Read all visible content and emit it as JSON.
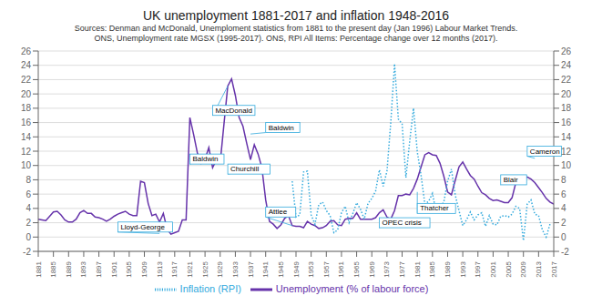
{
  "chart_data": {
    "type": "line",
    "title": "UK unemployment 1881-2017 and inflation 1948-2016",
    "subtitle": [
      "Sources: Denman and McDonald, Unemploment statistics from 1881 to the present day (Jan 1996) Labour Market Trends.",
      "ONS, Unemployment rate MGSX (1995-2017). ONS, RPI All Items: Percentage change over 12 months (2017)."
    ],
    "xlim": [
      1881,
      2017
    ],
    "xticks": [
      1881,
      1885,
      1889,
      1893,
      1897,
      1901,
      1905,
      1909,
      1913,
      1917,
      1921,
      1925,
      1929,
      1933,
      1937,
      1941,
      1945,
      1949,
      1953,
      1957,
      1961,
      1965,
      1969,
      1973,
      1977,
      1981,
      1985,
      1989,
      1993,
      1997,
      2001,
      2005,
      2009,
      2013,
      2017
    ],
    "ylim": [
      -2,
      26
    ],
    "yticks": [
      -2,
      0,
      2,
      4,
      6,
      8,
      10,
      12,
      14,
      16,
      18,
      20,
      22,
      24,
      26
    ],
    "y2lim": [
      -2,
      26
    ],
    "y2ticks": [
      -2,
      0,
      2,
      4,
      6,
      8,
      10,
      12,
      14,
      16,
      18,
      20,
      22,
      24,
      26
    ],
    "grid": true,
    "legend": "bottom",
    "series": [
      {
        "name": "Unemployment (% of labour force)",
        "color": "#6633aa",
        "line_style": "solid",
        "x": [
          1881,
          1882,
          1883,
          1884,
          1885,
          1886,
          1887,
          1888,
          1889,
          1890,
          1891,
          1892,
          1893,
          1894,
          1895,
          1896,
          1897,
          1898,
          1899,
          1900,
          1901,
          1902,
          1903,
          1904,
          1905,
          1906,
          1907,
          1908,
          1909,
          1910,
          1911,
          1912,
          1913,
          1914,
          1915,
          1916,
          1917,
          1918,
          1919,
          1920,
          1921,
          1922,
          1923,
          1924,
          1925,
          1926,
          1927,
          1928,
          1929,
          1930,
          1931,
          1932,
          1933,
          1934,
          1935,
          1936,
          1937,
          1938,
          1939,
          1940,
          1941,
          1942,
          1943,
          1944,
          1945,
          1946,
          1947,
          1948,
          1949,
          1950,
          1951,
          1952,
          1953,
          1954,
          1955,
          1956,
          1957,
          1958,
          1959,
          1960,
          1961,
          1962,
          1963,
          1964,
          1965,
          1966,
          1967,
          1968,
          1969,
          1970,
          1971,
          1972,
          1973,
          1974,
          1975,
          1976,
          1977,
          1978,
          1979,
          1980,
          1981,
          1982,
          1983,
          1984,
          1985,
          1986,
          1987,
          1988,
          1989,
          1990,
          1991,
          1992,
          1993,
          1994,
          1995,
          1996,
          1997,
          1998,
          1999,
          2000,
          2001,
          2002,
          2003,
          2004,
          2005,
          2006,
          2007,
          2008,
          2009,
          2010,
          2011,
          2012,
          2013,
          2014,
          2015,
          2016,
          2017
        ],
        "values": [
          2.5,
          2.4,
          2.3,
          2.9,
          3.5,
          3.6,
          3.1,
          2.4,
          2.1,
          2.1,
          2.5,
          3.4,
          3.7,
          3.3,
          3.3,
          2.8,
          2.7,
          2.5,
          2.2,
          2.5,
          2.9,
          3.2,
          3.4,
          3.6,
          3.2,
          3.0,
          3.0,
          7.8,
          7.6,
          4.7,
          3.0,
          3.2,
          2.1,
          3.3,
          1.1,
          0.4,
          0.6,
          0.8,
          2.4,
          2.4,
          16.7,
          14.3,
          11.7,
          10.3,
          10.9,
          12.5,
          9.7,
          10.8,
          10.4,
          15.8,
          21.1,
          22.1,
          19.8,
          16.7,
          15.5,
          13.1,
          10.8,
          12.9,
          11.6,
          9.7,
          5.2,
          2.2,
          1.8,
          1.2,
          1.7,
          2.6,
          3.0,
          1.6,
          1.5,
          1.5,
          1.3,
          2.2,
          1.8,
          1.6,
          1.2,
          1.3,
          1.6,
          2.2,
          2.3,
          1.7,
          1.6,
          2.5,
          2.6,
          2.6,
          3.4,
          2.5,
          2.5,
          2.5,
          2.5,
          2.7,
          3.4,
          3.8,
          2.8,
          2.5,
          3.7,
          5.8,
          5.8,
          6.0,
          5.9,
          6.8,
          8.1,
          9.8,
          11.5,
          11.8,
          11.5,
          11.4,
          10.3,
          8.5,
          6.3,
          5.9,
          7.9,
          9.8,
          10.5,
          9.5,
          8.6,
          8.1,
          7.1,
          6.2,
          5.9,
          5.4,
          5.1,
          5.2,
          5.0,
          4.8,
          4.8,
          5.5,
          7.6,
          7.9,
          8.3,
          8.4,
          8.1,
          7.6,
          6.9,
          6.2,
          5.4,
          4.9,
          4.6
        ]
      },
      {
        "name": "Inflation  (RPI)",
        "color": "#33aadd",
        "line_style": "dotted",
        "axis": "y2",
        "x": [
          1948,
          1949,
          1950,
          1951,
          1952,
          1953,
          1954,
          1955,
          1956,
          1957,
          1958,
          1959,
          1960,
          1961,
          1962,
          1963,
          1964,
          1965,
          1966,
          1967,
          1968,
          1969,
          1970,
          1971,
          1972,
          1973,
          1974,
          1975,
          1976,
          1977,
          1978,
          1979,
          1980,
          1981,
          1982,
          1983,
          1984,
          1985,
          1986,
          1987,
          1988,
          1989,
          1990,
          1991,
          1992,
          1993,
          1994,
          1995,
          1996,
          1997,
          1998,
          1999,
          2000,
          2001,
          2002,
          2003,
          2004,
          2005,
          2006,
          2007,
          2008,
          2009,
          2010,
          2011,
          2012,
          2013,
          2014,
          2015,
          2016
        ],
        "values": [
          7.8,
          2.8,
          3.1,
          9.1,
          9.2,
          3.1,
          1.8,
          4.5,
          4.9,
          3.7,
          3.0,
          0.6,
          1.0,
          3.4,
          4.3,
          2.0,
          3.3,
          4.8,
          3.9,
          2.5,
          4.7,
          5.4,
          6.4,
          9.4,
          7.1,
          9.2,
          16.0,
          24.2,
          16.5,
          15.8,
          8.3,
          13.4,
          18.0,
          11.9,
          8.6,
          4.6,
          5.0,
          6.1,
          3.4,
          4.2,
          4.9,
          7.8,
          9.5,
          5.9,
          3.7,
          1.6,
          2.4,
          3.5,
          2.4,
          3.1,
          3.4,
          1.5,
          3.0,
          1.8,
          1.7,
          2.9,
          3.0,
          2.8,
          3.2,
          4.3,
          4.0,
          -0.5,
          4.6,
          5.2,
          3.2,
          3.0,
          1.0,
          0.0,
          1.8
        ]
      }
    ],
    "annotations": [
      {
        "text": "Lloyd-George",
        "xy": [
          1913,
          0.5
        ],
        "xytext": [
          1902,
          0.7
        ],
        "color": "#33aadd"
      },
      {
        "text": "Baldwin",
        "xy": [
          1925,
          10.9
        ],
        "xytext": [
          1921,
          10.2
        ],
        "color": "#33aadd"
      },
      {
        "text": "MacDonald",
        "xy": [
          1931,
          21.1
        ],
        "xytext": [
          1927,
          17.0
        ],
        "color": "#33aadd"
      },
      {
        "text": "Churchill",
        "xy": [
          1940,
          9.7
        ],
        "xytext": [
          1931,
          8.8
        ],
        "color": "#33aadd"
      },
      {
        "text": "Baldwin",
        "xy": [
          1937,
          14.4
        ],
        "xytext": [
          1941,
          14.6
        ],
        "color": "#33aadd"
      },
      {
        "text": "Attlee",
        "xy": [
          1948,
          1.6
        ],
        "xytext": [
          1941,
          2.8
        ],
        "color": "#33aadd"
      },
      {
        "text": "OPEC crisis",
        "xy": [
          1975,
          2.5
        ],
        "xytext": [
          1971,
          1.3
        ],
        "color": "#33aadd"
      },
      {
        "text": "Thatcher",
        "xy": [
          1981,
          6.3
        ],
        "xytext": [
          1981,
          3.3
        ],
        "color": "#33aadd"
      },
      {
        "text": "Blair",
        "xy": [
          2005,
          8.0
        ],
        "xytext": [
          2003,
          7.3
        ],
        "color": "#33aadd"
      },
      {
        "text": "Cameron",
        "xy": [
          2012,
          11.0
        ],
        "xytext": [
          2010,
          11.3
        ],
        "color": "#33aadd"
      }
    ]
  }
}
